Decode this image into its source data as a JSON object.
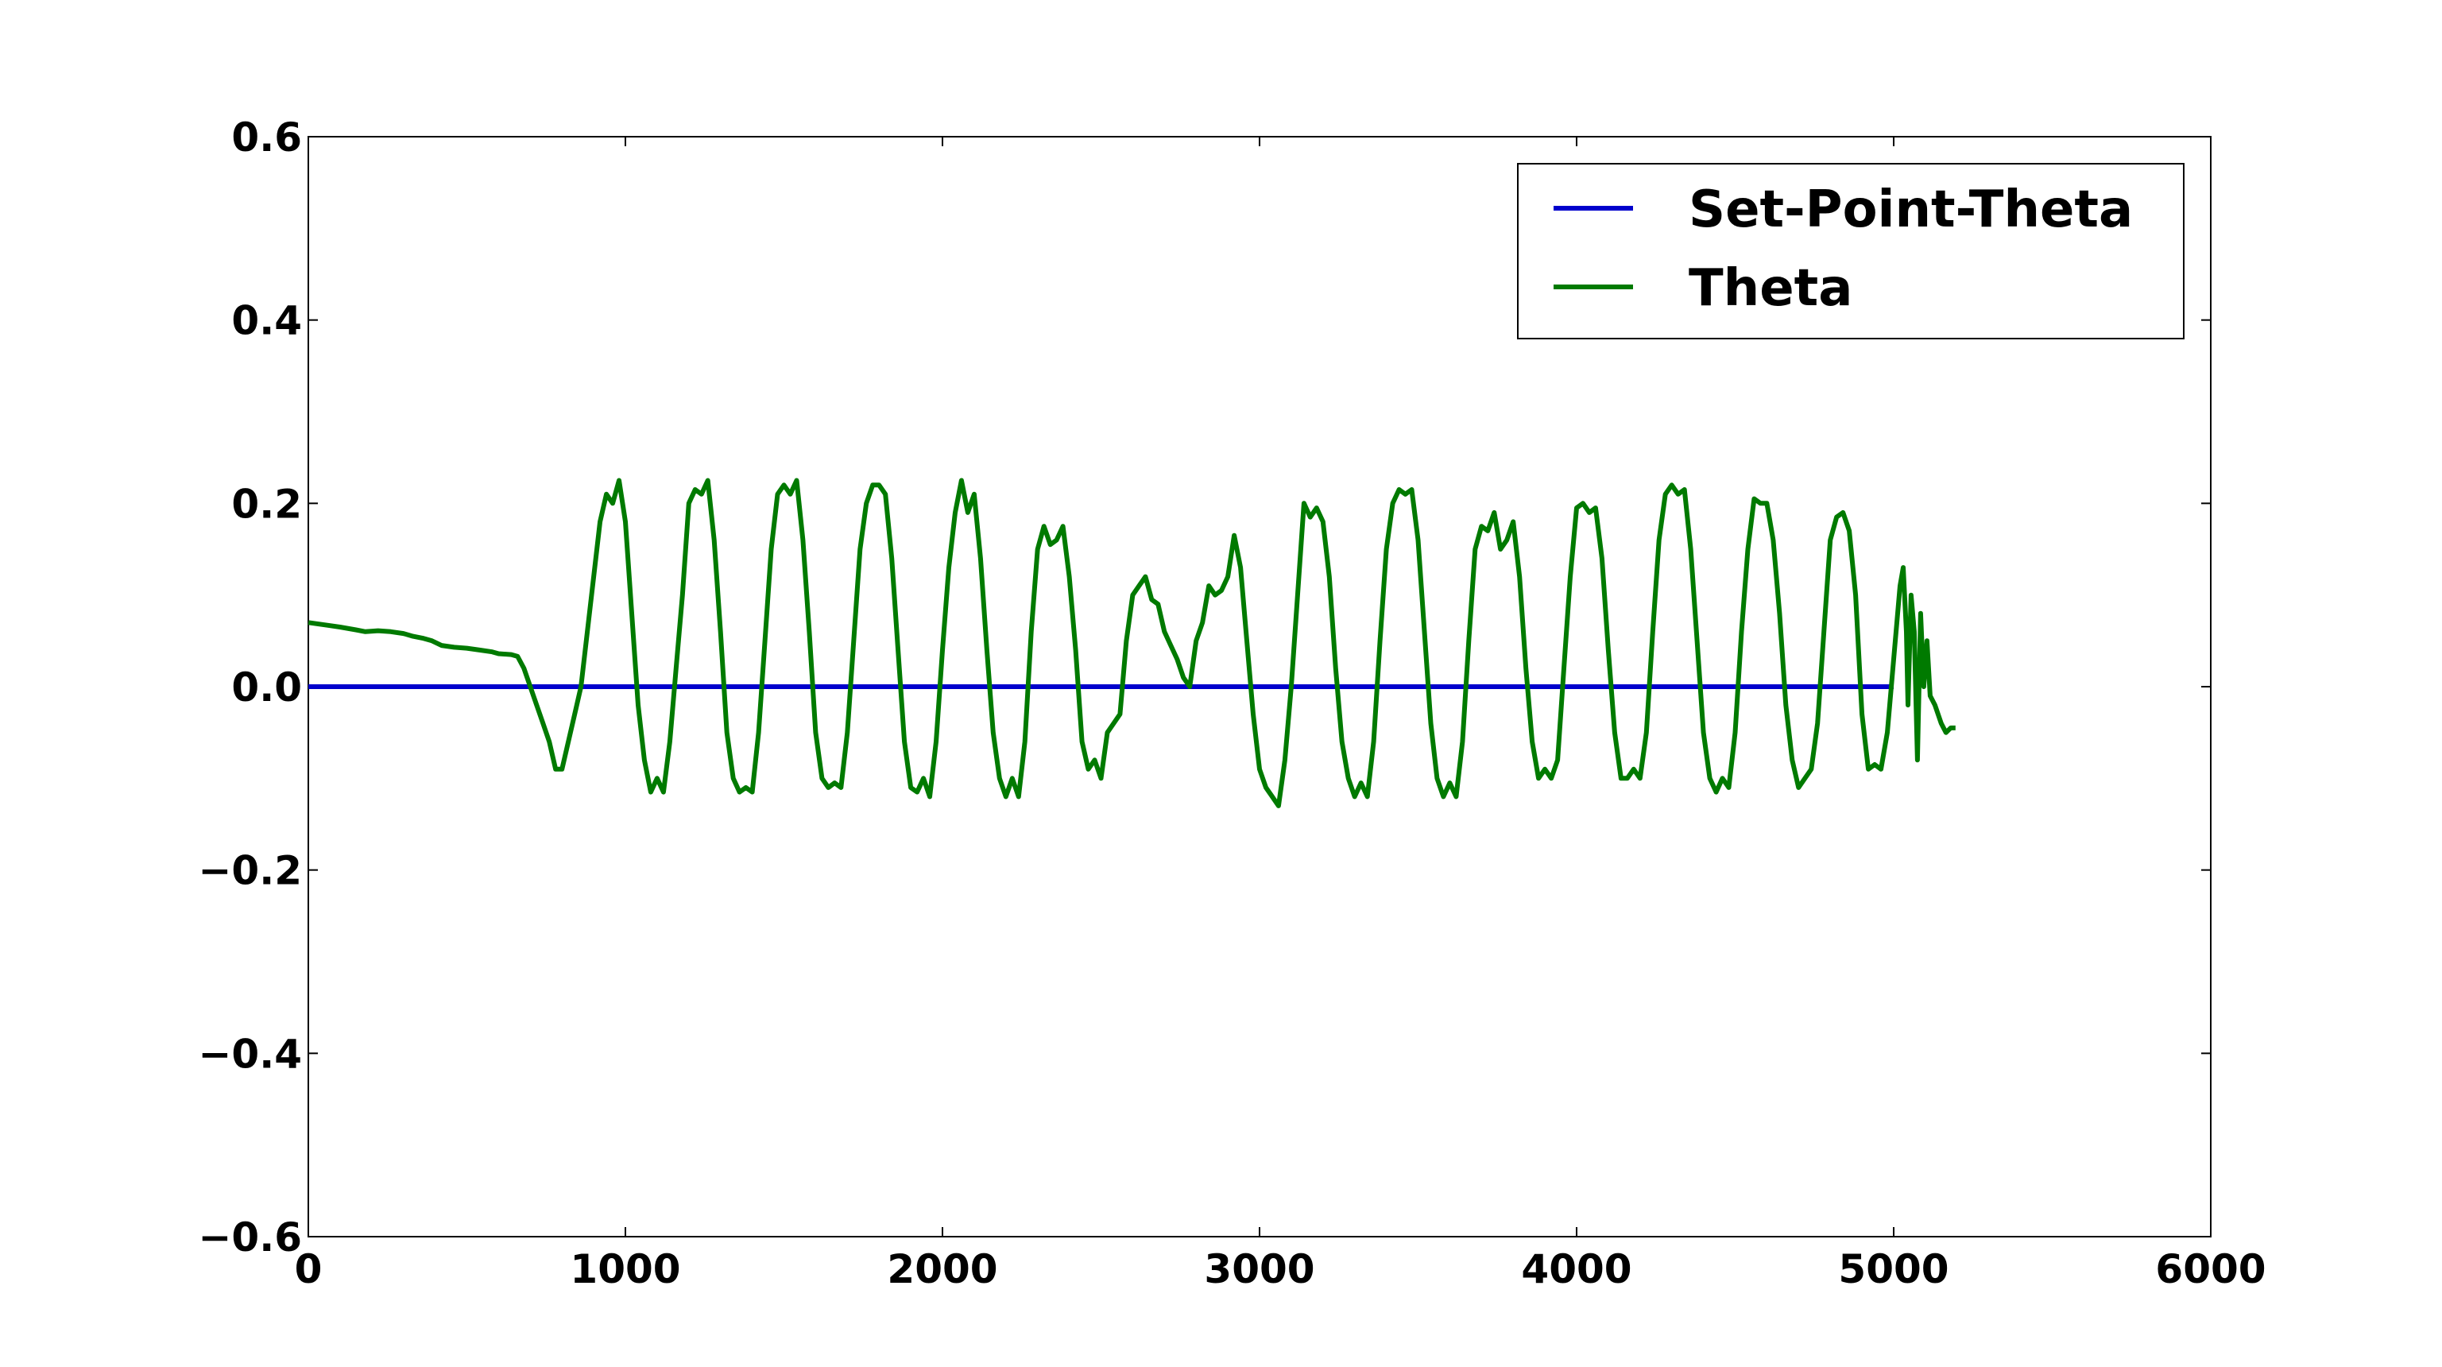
{
  "chart_data": {
    "type": "line",
    "title": "",
    "xlabel": "",
    "ylabel": "",
    "xlim": [
      0,
      6000
    ],
    "ylim": [
      -0.6,
      0.6
    ],
    "x_ticks": [
      0,
      1000,
      2000,
      3000,
      4000,
      5000,
      6000
    ],
    "x_tick_labels": [
      "0",
      "1000",
      "2000",
      "3000",
      "4000",
      "5000",
      "6000"
    ],
    "y_ticks": [
      -0.6,
      -0.4,
      -0.2,
      0.0,
      0.2,
      0.4,
      0.6
    ],
    "y_tick_labels": [
      "−0.6",
      "−0.4",
      "−0.2",
      "0.0",
      "0.2",
      "0.4",
      "0.6"
    ],
    "grid": false,
    "legend_position": "top-right",
    "series": [
      {
        "name": "Set-Point-Theta",
        "color": "#0000cc",
        "points": [
          [
            0,
            0.0
          ],
          [
            5000,
            0.0
          ]
        ]
      },
      {
        "name": "Theta",
        "color": "#007a00",
        "points": [
          [
            0,
            0.07
          ],
          [
            60,
            0.067
          ],
          [
            100,
            0.065
          ],
          [
            150,
            0.062
          ],
          [
            180,
            0.06
          ],
          [
            220,
            0.061
          ],
          [
            260,
            0.06
          ],
          [
            300,
            0.058
          ],
          [
            330,
            0.055
          ],
          [
            360,
            0.053
          ],
          [
            390,
            0.05
          ],
          [
            420,
            0.045
          ],
          [
            460,
            0.043
          ],
          [
            500,
            0.042
          ],
          [
            540,
            0.04
          ],
          [
            580,
            0.038
          ],
          [
            600,
            0.036
          ],
          [
            640,
            0.035
          ],
          [
            660,
            0.033
          ],
          [
            680,
            0.02
          ],
          [
            700,
            0.0
          ],
          [
            720,
            -0.02
          ],
          [
            740,
            -0.04
          ],
          [
            760,
            -0.06
          ],
          [
            780,
            -0.09
          ],
          [
            800,
            -0.09
          ],
          [
            820,
            -0.06
          ],
          [
            840,
            -0.03
          ],
          [
            860,
            0.0
          ],
          [
            880,
            0.06
          ],
          [
            900,
            0.12
          ],
          [
            920,
            0.18
          ],
          [
            940,
            0.21
          ],
          [
            960,
            0.2
          ],
          [
            980,
            0.225
          ],
          [
            1000,
            0.18
          ],
          [
            1020,
            0.08
          ],
          [
            1040,
            -0.02
          ],
          [
            1060,
            -0.08
          ],
          [
            1080,
            -0.115
          ],
          [
            1100,
            -0.1
          ],
          [
            1120,
            -0.115
          ],
          [
            1140,
            -0.06
          ],
          [
            1160,
            0.02
          ],
          [
            1180,
            0.1
          ],
          [
            1200,
            0.2
          ],
          [
            1220,
            0.215
          ],
          [
            1240,
            0.21
          ],
          [
            1260,
            0.225
          ],
          [
            1280,
            0.16
          ],
          [
            1300,
            0.06
          ],
          [
            1320,
            -0.05
          ],
          [
            1340,
            -0.1
          ],
          [
            1360,
            -0.115
          ],
          [
            1380,
            -0.11
          ],
          [
            1400,
            -0.115
          ],
          [
            1420,
            -0.05
          ],
          [
            1440,
            0.05
          ],
          [
            1460,
            0.15
          ],
          [
            1480,
            0.21
          ],
          [
            1500,
            0.22
          ],
          [
            1520,
            0.21
          ],
          [
            1540,
            0.225
          ],
          [
            1560,
            0.16
          ],
          [
            1580,
            0.06
          ],
          [
            1600,
            -0.05
          ],
          [
            1620,
            -0.1
          ],
          [
            1640,
            -0.11
          ],
          [
            1660,
            -0.105
          ],
          [
            1680,
            -0.11
          ],
          [
            1700,
            -0.05
          ],
          [
            1720,
            0.05
          ],
          [
            1740,
            0.15
          ],
          [
            1760,
            0.2
          ],
          [
            1780,
            0.22
          ],
          [
            1800,
            0.22
          ],
          [
            1820,
            0.21
          ],
          [
            1840,
            0.14
          ],
          [
            1860,
            0.04
          ],
          [
            1880,
            -0.06
          ],
          [
            1900,
            -0.11
          ],
          [
            1920,
            -0.115
          ],
          [
            1940,
            -0.1
          ],
          [
            1960,
            -0.12
          ],
          [
            1980,
            -0.06
          ],
          [
            2000,
            0.04
          ],
          [
            2020,
            0.13
          ],
          [
            2040,
            0.19
          ],
          [
            2060,
            0.225
          ],
          [
            2080,
            0.19
          ],
          [
            2100,
            0.21
          ],
          [
            2120,
            0.14
          ],
          [
            2140,
            0.04
          ],
          [
            2160,
            -0.05
          ],
          [
            2180,
            -0.1
          ],
          [
            2200,
            -0.12
          ],
          [
            2220,
            -0.1
          ],
          [
            2240,
            -0.12
          ],
          [
            2260,
            -0.06
          ],
          [
            2280,
            0.06
          ],
          [
            2300,
            0.15
          ],
          [
            2320,
            0.175
          ],
          [
            2340,
            0.155
          ],
          [
            2360,
            0.16
          ],
          [
            2380,
            0.175
          ],
          [
            2400,
            0.12
          ],
          [
            2420,
            0.04
          ],
          [
            2440,
            -0.06
          ],
          [
            2460,
            -0.09
          ],
          [
            2480,
            -0.08
          ],
          [
            2500,
            -0.1
          ],
          [
            2520,
            -0.05
          ],
          [
            2540,
            -0.04
          ],
          [
            2560,
            -0.03
          ],
          [
            2580,
            0.05
          ],
          [
            2600,
            0.1
          ],
          [
            2620,
            0.11
          ],
          [
            2640,
            0.12
          ],
          [
            2660,
            0.095
          ],
          [
            2680,
            0.09
          ],
          [
            2700,
            0.06
          ],
          [
            2720,
            0.045
          ],
          [
            2740,
            0.03
          ],
          [
            2760,
            0.01
          ],
          [
            2780,
            0.0
          ],
          [
            2800,
            0.05
          ],
          [
            2820,
            0.07
          ],
          [
            2840,
            0.11
          ],
          [
            2860,
            0.1
          ],
          [
            2880,
            0.105
          ],
          [
            2900,
            0.12
          ],
          [
            2920,
            0.165
          ],
          [
            2940,
            0.13
          ],
          [
            2960,
            0.05
          ],
          [
            2980,
            -0.03
          ],
          [
            3000,
            -0.09
          ],
          [
            3020,
            -0.11
          ],
          [
            3040,
            -0.12
          ],
          [
            3060,
            -0.13
          ],
          [
            3080,
            -0.08
          ],
          [
            3100,
            0.0
          ],
          [
            3120,
            0.1
          ],
          [
            3140,
            0.2
          ],
          [
            3160,
            0.185
          ],
          [
            3180,
            0.195
          ],
          [
            3200,
            0.18
          ],
          [
            3220,
            0.12
          ],
          [
            3240,
            0.02
          ],
          [
            3260,
            -0.06
          ],
          [
            3280,
            -0.1
          ],
          [
            3300,
            -0.12
          ],
          [
            3320,
            -0.105
          ],
          [
            3340,
            -0.12
          ],
          [
            3360,
            -0.06
          ],
          [
            3380,
            0.05
          ],
          [
            3400,
            0.15
          ],
          [
            3420,
            0.2
          ],
          [
            3440,
            0.215
          ],
          [
            3460,
            0.21
          ],
          [
            3480,
            0.215
          ],
          [
            3500,
            0.16
          ],
          [
            3520,
            0.06
          ],
          [
            3540,
            -0.04
          ],
          [
            3560,
            -0.1
          ],
          [
            3580,
            -0.12
          ],
          [
            3600,
            -0.105
          ],
          [
            3620,
            -0.12
          ],
          [
            3640,
            -0.06
          ],
          [
            3660,
            0.05
          ],
          [
            3680,
            0.15
          ],
          [
            3700,
            0.175
          ],
          [
            3720,
            0.17
          ],
          [
            3740,
            0.19
          ],
          [
            3760,
            0.15
          ],
          [
            3780,
            0.16
          ],
          [
            3800,
            0.18
          ],
          [
            3820,
            0.12
          ],
          [
            3840,
            0.02
          ],
          [
            3860,
            -0.06
          ],
          [
            3880,
            -0.1
          ],
          [
            3900,
            -0.09
          ],
          [
            3920,
            -0.1
          ],
          [
            3940,
            -0.08
          ],
          [
            3960,
            0.02
          ],
          [
            3980,
            0.12
          ],
          [
            4000,
            0.195
          ],
          [
            4020,
            0.2
          ],
          [
            4040,
            0.19
          ],
          [
            4060,
            0.195
          ],
          [
            4080,
            0.14
          ],
          [
            4100,
            0.04
          ],
          [
            4120,
            -0.05
          ],
          [
            4140,
            -0.1
          ],
          [
            4160,
            -0.1
          ],
          [
            4180,
            -0.09
          ],
          [
            4200,
            -0.1
          ],
          [
            4220,
            -0.05
          ],
          [
            4240,
            0.06
          ],
          [
            4260,
            0.16
          ],
          [
            4280,
            0.21
          ],
          [
            4300,
            0.22
          ],
          [
            4320,
            0.21
          ],
          [
            4340,
            0.215
          ],
          [
            4360,
            0.15
          ],
          [
            4380,
            0.05
          ],
          [
            4400,
            -0.05
          ],
          [
            4420,
            -0.1
          ],
          [
            4440,
            -0.115
          ],
          [
            4460,
            -0.1
          ],
          [
            4480,
            -0.11
          ],
          [
            4500,
            -0.05
          ],
          [
            4520,
            0.06
          ],
          [
            4540,
            0.15
          ],
          [
            4560,
            0.205
          ],
          [
            4580,
            0.2
          ],
          [
            4600,
            0.2
          ],
          [
            4620,
            0.16
          ],
          [
            4640,
            0.08
          ],
          [
            4660,
            -0.02
          ],
          [
            4680,
            -0.08
          ],
          [
            4700,
            -0.11
          ],
          [
            4720,
            -0.1
          ],
          [
            4740,
            -0.09
          ],
          [
            4760,
            -0.04
          ],
          [
            4780,
            0.06
          ],
          [
            4800,
            0.16
          ],
          [
            4820,
            0.185
          ],
          [
            4840,
            0.19
          ],
          [
            4860,
            0.17
          ],
          [
            4880,
            0.1
          ],
          [
            4900,
            -0.03
          ],
          [
            4920,
            -0.09
          ],
          [
            4940,
            -0.085
          ],
          [
            4960,
            -0.09
          ],
          [
            4980,
            -0.05
          ],
          [
            5000,
            0.03
          ],
          [
            5020,
            0.11
          ],
          [
            5030,
            0.13
          ],
          [
            5040,
            0.06
          ],
          [
            5045,
            -0.02
          ],
          [
            5055,
            0.1
          ],
          [
            5065,
            0.06
          ],
          [
            5075,
            -0.08
          ],
          [
            5085,
            0.08
          ],
          [
            5095,
            0.0
          ],
          [
            5105,
            0.05
          ],
          [
            5115,
            -0.01
          ],
          [
            5130,
            -0.02
          ],
          [
            5150,
            -0.04
          ],
          [
            5165,
            -0.05
          ],
          [
            5180,
            -0.045
          ],
          [
            5195,
            -0.045
          ]
        ]
      }
    ]
  },
  "legend": {
    "items": [
      {
        "label": "Set-Point-Theta",
        "color": "#0000cc"
      },
      {
        "label": "Theta",
        "color": "#007a00"
      }
    ]
  }
}
